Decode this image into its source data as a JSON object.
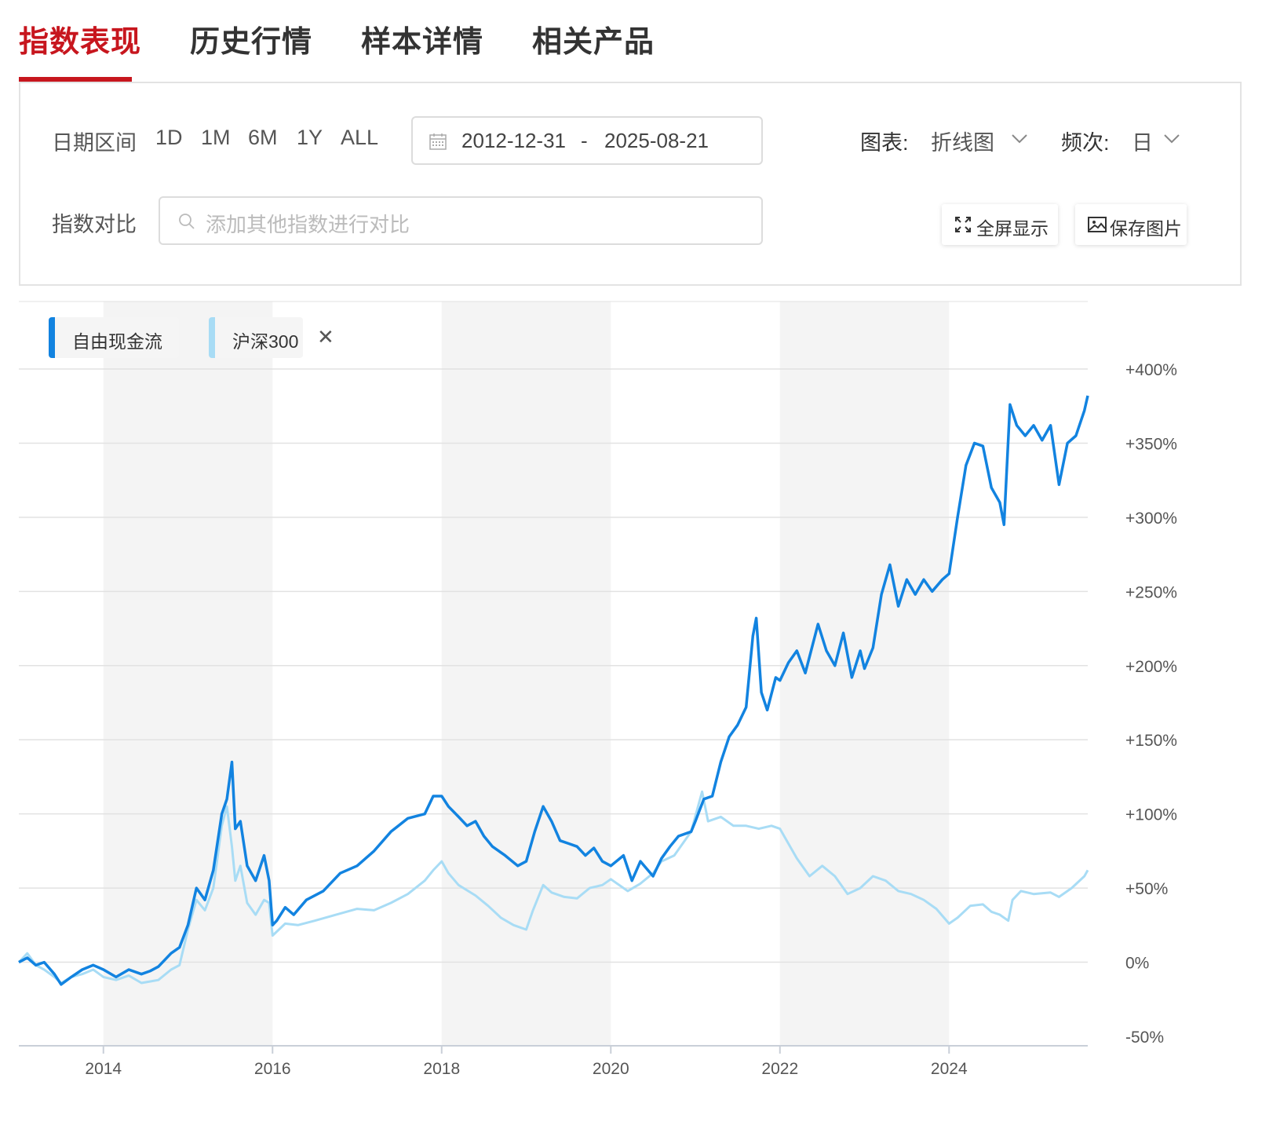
{
  "tabs": [
    "指数表现",
    "历史行情",
    "样本详情",
    "相关产品"
  ],
  "filters": {
    "date_range_label": "日期区间",
    "ranges": [
      "1D",
      "1M",
      "6M",
      "1Y",
      "ALL"
    ],
    "start_date": "2012-12-31",
    "date_sep": "-",
    "end_date": "2025-08-21",
    "chart_type_label": "图表:",
    "chart_type_value": "折线图",
    "frequency_label": "频次:",
    "frequency_value": "日",
    "compare_label": "指数对比",
    "compare_placeholder": "添加其他指数进行对比",
    "fullscreen_label": "全屏显示",
    "save_image_label": "保存图片"
  },
  "colors": {
    "accent_red": "#c7161e",
    "series_primary": "#1283e0",
    "series_secondary": "#a8dcf5",
    "band": "#f4f4f4",
    "grid": "#e2e2e2"
  },
  "chart_data": {
    "type": "line",
    "xlim": [
      2013.0,
      2025.64
    ],
    "ylim": [
      -50,
      400
    ],
    "y_ticks": [
      400,
      350,
      300,
      250,
      200,
      150,
      100,
      50,
      0,
      -50
    ],
    "y_tick_labels": [
      "+400%",
      "+350%",
      "+300%",
      "+250%",
      "+200%",
      "+150%",
      "+100%",
      "+50%",
      "0%",
      "-50%"
    ],
    "x_ticks": [
      2014,
      2016,
      2018,
      2020,
      2022,
      2024
    ],
    "x_tick_labels": [
      "2014",
      "2016",
      "2018",
      "2020",
      "2022",
      "2024"
    ],
    "shaded_bands": [
      [
        2014,
        2016
      ],
      [
        2018,
        2020
      ],
      [
        2022,
        2024
      ]
    ],
    "legend_position": "top-left",
    "series": [
      {
        "name": "自由现金流",
        "color": "#1283e0",
        "points": [
          [
            2013.0,
            0
          ],
          [
            2013.1,
            3
          ],
          [
            2013.2,
            -2
          ],
          [
            2013.3,
            0
          ],
          [
            2013.42,
            -8
          ],
          [
            2013.5,
            -15
          ],
          [
            2013.62,
            -10
          ],
          [
            2013.75,
            -5
          ],
          [
            2013.88,
            -2
          ],
          [
            2014.0,
            -5
          ],
          [
            2014.15,
            -10
          ],
          [
            2014.3,
            -5
          ],
          [
            2014.45,
            -8
          ],
          [
            2014.55,
            -6
          ],
          [
            2014.65,
            -3
          ],
          [
            2014.8,
            6
          ],
          [
            2014.9,
            10
          ],
          [
            2015.0,
            25
          ],
          [
            2015.1,
            50
          ],
          [
            2015.2,
            42
          ],
          [
            2015.3,
            62
          ],
          [
            2015.4,
            100
          ],
          [
            2015.46,
            110
          ],
          [
            2015.52,
            135
          ],
          [
            2015.56,
            90
          ],
          [
            2015.62,
            95
          ],
          [
            2015.7,
            65
          ],
          [
            2015.8,
            55
          ],
          [
            2015.9,
            72
          ],
          [
            2015.96,
            55
          ],
          [
            2016.0,
            25
          ],
          [
            2016.05,
            28
          ],
          [
            2016.15,
            37
          ],
          [
            2016.25,
            32
          ],
          [
            2016.4,
            42
          ],
          [
            2016.6,
            48
          ],
          [
            2016.8,
            60
          ],
          [
            2017.0,
            65
          ],
          [
            2017.2,
            75
          ],
          [
            2017.4,
            88
          ],
          [
            2017.6,
            97
          ],
          [
            2017.8,
            100
          ],
          [
            2017.9,
            112
          ],
          [
            2018.0,
            112
          ],
          [
            2018.08,
            105
          ],
          [
            2018.2,
            98
          ],
          [
            2018.3,
            92
          ],
          [
            2018.4,
            95
          ],
          [
            2018.5,
            85
          ],
          [
            2018.6,
            78
          ],
          [
            2018.75,
            72
          ],
          [
            2018.9,
            65
          ],
          [
            2019.0,
            68
          ],
          [
            2019.1,
            88
          ],
          [
            2019.2,
            105
          ],
          [
            2019.3,
            95
          ],
          [
            2019.4,
            82
          ],
          [
            2019.5,
            80
          ],
          [
            2019.6,
            78
          ],
          [
            2019.7,
            72
          ],
          [
            2019.8,
            77
          ],
          [
            2019.9,
            68
          ],
          [
            2020.0,
            65
          ],
          [
            2020.15,
            72
          ],
          [
            2020.25,
            55
          ],
          [
            2020.35,
            68
          ],
          [
            2020.5,
            58
          ],
          [
            2020.6,
            70
          ],
          [
            2020.7,
            78
          ],
          [
            2020.8,
            85
          ],
          [
            2020.95,
            88
          ],
          [
            2021.0,
            95
          ],
          [
            2021.1,
            110
          ],
          [
            2021.2,
            112
          ],
          [
            2021.3,
            135
          ],
          [
            2021.4,
            152
          ],
          [
            2021.5,
            160
          ],
          [
            2021.6,
            172
          ],
          [
            2021.68,
            220
          ],
          [
            2021.72,
            232
          ],
          [
            2021.78,
            182
          ],
          [
            2021.85,
            170
          ],
          [
            2021.95,
            192
          ],
          [
            2022.0,
            190
          ],
          [
            2022.1,
            202
          ],
          [
            2022.2,
            210
          ],
          [
            2022.3,
            195
          ],
          [
            2022.45,
            228
          ],
          [
            2022.55,
            210
          ],
          [
            2022.65,
            200
          ],
          [
            2022.75,
            222
          ],
          [
            2022.85,
            192
          ],
          [
            2022.95,
            210
          ],
          [
            2023.0,
            198
          ],
          [
            2023.1,
            212
          ],
          [
            2023.2,
            248
          ],
          [
            2023.3,
            268
          ],
          [
            2023.4,
            240
          ],
          [
            2023.5,
            258
          ],
          [
            2023.6,
            248
          ],
          [
            2023.7,
            258
          ],
          [
            2023.8,
            250
          ],
          [
            2023.92,
            258
          ],
          [
            2024.0,
            262
          ],
          [
            2024.1,
            300
          ],
          [
            2024.2,
            335
          ],
          [
            2024.3,
            350
          ],
          [
            2024.4,
            348
          ],
          [
            2024.5,
            320
          ],
          [
            2024.6,
            310
          ],
          [
            2024.65,
            295
          ],
          [
            2024.72,
            376
          ],
          [
            2024.8,
            362
          ],
          [
            2024.9,
            355
          ],
          [
            2025.0,
            362
          ],
          [
            2025.1,
            352
          ],
          [
            2025.2,
            362
          ],
          [
            2025.3,
            322
          ],
          [
            2025.4,
            350
          ],
          [
            2025.5,
            355
          ],
          [
            2025.6,
            372
          ],
          [
            2025.64,
            382
          ]
        ]
      },
      {
        "name": "沪深300",
        "color": "#a8dcf5",
        "points": [
          [
            2013.0,
            0
          ],
          [
            2013.1,
            6
          ],
          [
            2013.2,
            -2
          ],
          [
            2013.3,
            -5
          ],
          [
            2013.42,
            -10
          ],
          [
            2013.5,
            -14
          ],
          [
            2013.62,
            -10
          ],
          [
            2013.75,
            -8
          ],
          [
            2013.88,
            -5
          ],
          [
            2014.0,
            -10
          ],
          [
            2014.15,
            -12
          ],
          [
            2014.3,
            -9
          ],
          [
            2014.45,
            -14
          ],
          [
            2014.55,
            -13
          ],
          [
            2014.65,
            -12
          ],
          [
            2014.8,
            -5
          ],
          [
            2014.9,
            -2
          ],
          [
            2015.0,
            22
          ],
          [
            2015.1,
            42
          ],
          [
            2015.2,
            35
          ],
          [
            2015.3,
            50
          ],
          [
            2015.4,
            92
          ],
          [
            2015.46,
            105
          ],
          [
            2015.52,
            78
          ],
          [
            2015.56,
            55
          ],
          [
            2015.62,
            65
          ],
          [
            2015.7,
            40
          ],
          [
            2015.8,
            32
          ],
          [
            2015.9,
            42
          ],
          [
            2015.96,
            40
          ],
          [
            2016.0,
            18
          ],
          [
            2016.15,
            26
          ],
          [
            2016.3,
            25
          ],
          [
            2016.5,
            28
          ],
          [
            2016.75,
            32
          ],
          [
            2017.0,
            36
          ],
          [
            2017.2,
            35
          ],
          [
            2017.4,
            40
          ],
          [
            2017.6,
            46
          ],
          [
            2017.8,
            55
          ],
          [
            2017.9,
            62
          ],
          [
            2018.0,
            68
          ],
          [
            2018.08,
            60
          ],
          [
            2018.2,
            52
          ],
          [
            2018.4,
            45
          ],
          [
            2018.55,
            38
          ],
          [
            2018.7,
            30
          ],
          [
            2018.85,
            25
          ],
          [
            2019.0,
            22
          ],
          [
            2019.08,
            35
          ],
          [
            2019.2,
            52
          ],
          [
            2019.3,
            47
          ],
          [
            2019.45,
            44
          ],
          [
            2019.6,
            43
          ],
          [
            2019.75,
            50
          ],
          [
            2019.9,
            52
          ],
          [
            2020.0,
            56
          ],
          [
            2020.2,
            48
          ],
          [
            2020.35,
            53
          ],
          [
            2020.5,
            60
          ],
          [
            2020.6,
            68
          ],
          [
            2020.75,
            72
          ],
          [
            2020.95,
            88
          ],
          [
            2021.08,
            115
          ],
          [
            2021.15,
            95
          ],
          [
            2021.3,
            98
          ],
          [
            2021.45,
            92
          ],
          [
            2021.6,
            92
          ],
          [
            2021.75,
            90
          ],
          [
            2021.9,
            92
          ],
          [
            2022.0,
            90
          ],
          [
            2022.2,
            70
          ],
          [
            2022.35,
            58
          ],
          [
            2022.5,
            65
          ],
          [
            2022.65,
            58
          ],
          [
            2022.8,
            46
          ],
          [
            2022.95,
            50
          ],
          [
            2023.1,
            58
          ],
          [
            2023.25,
            55
          ],
          [
            2023.4,
            48
          ],
          [
            2023.55,
            46
          ],
          [
            2023.7,
            42
          ],
          [
            2023.85,
            36
          ],
          [
            2024.0,
            26
          ],
          [
            2024.1,
            30
          ],
          [
            2024.25,
            38
          ],
          [
            2024.4,
            39
          ],
          [
            2024.5,
            34
          ],
          [
            2024.6,
            32
          ],
          [
            2024.7,
            28
          ],
          [
            2024.75,
            42
          ],
          [
            2024.85,
            48
          ],
          [
            2025.0,
            46
          ],
          [
            2025.2,
            47
          ],
          [
            2025.3,
            44
          ],
          [
            2025.45,
            50
          ],
          [
            2025.6,
            58
          ],
          [
            2025.64,
            62
          ]
        ]
      }
    ]
  }
}
